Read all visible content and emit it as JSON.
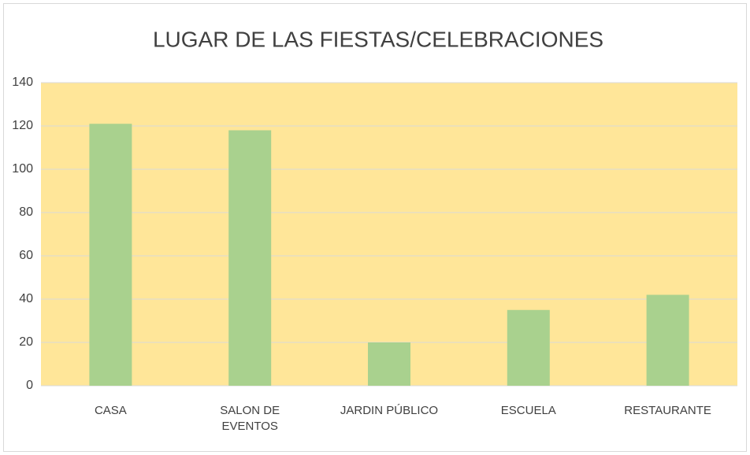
{
  "chart_data": {
    "type": "bar",
    "title": "LUGAR DE LAS FIESTAS/CELEBRACIONES",
    "categories": [
      "CASA",
      "SALON DE EVENTOS",
      "JARDIN PÚBLICO",
      "ESCUELA",
      "RESTAURANTE"
    ],
    "values": [
      121,
      118,
      20,
      35,
      42
    ],
    "color": "#a9d18e",
    "plot_background": "#ffe699",
    "ylim": [
      0,
      140
    ],
    "yticks": [
      0,
      20,
      40,
      60,
      80,
      100,
      120,
      140
    ],
    "grid": true
  }
}
